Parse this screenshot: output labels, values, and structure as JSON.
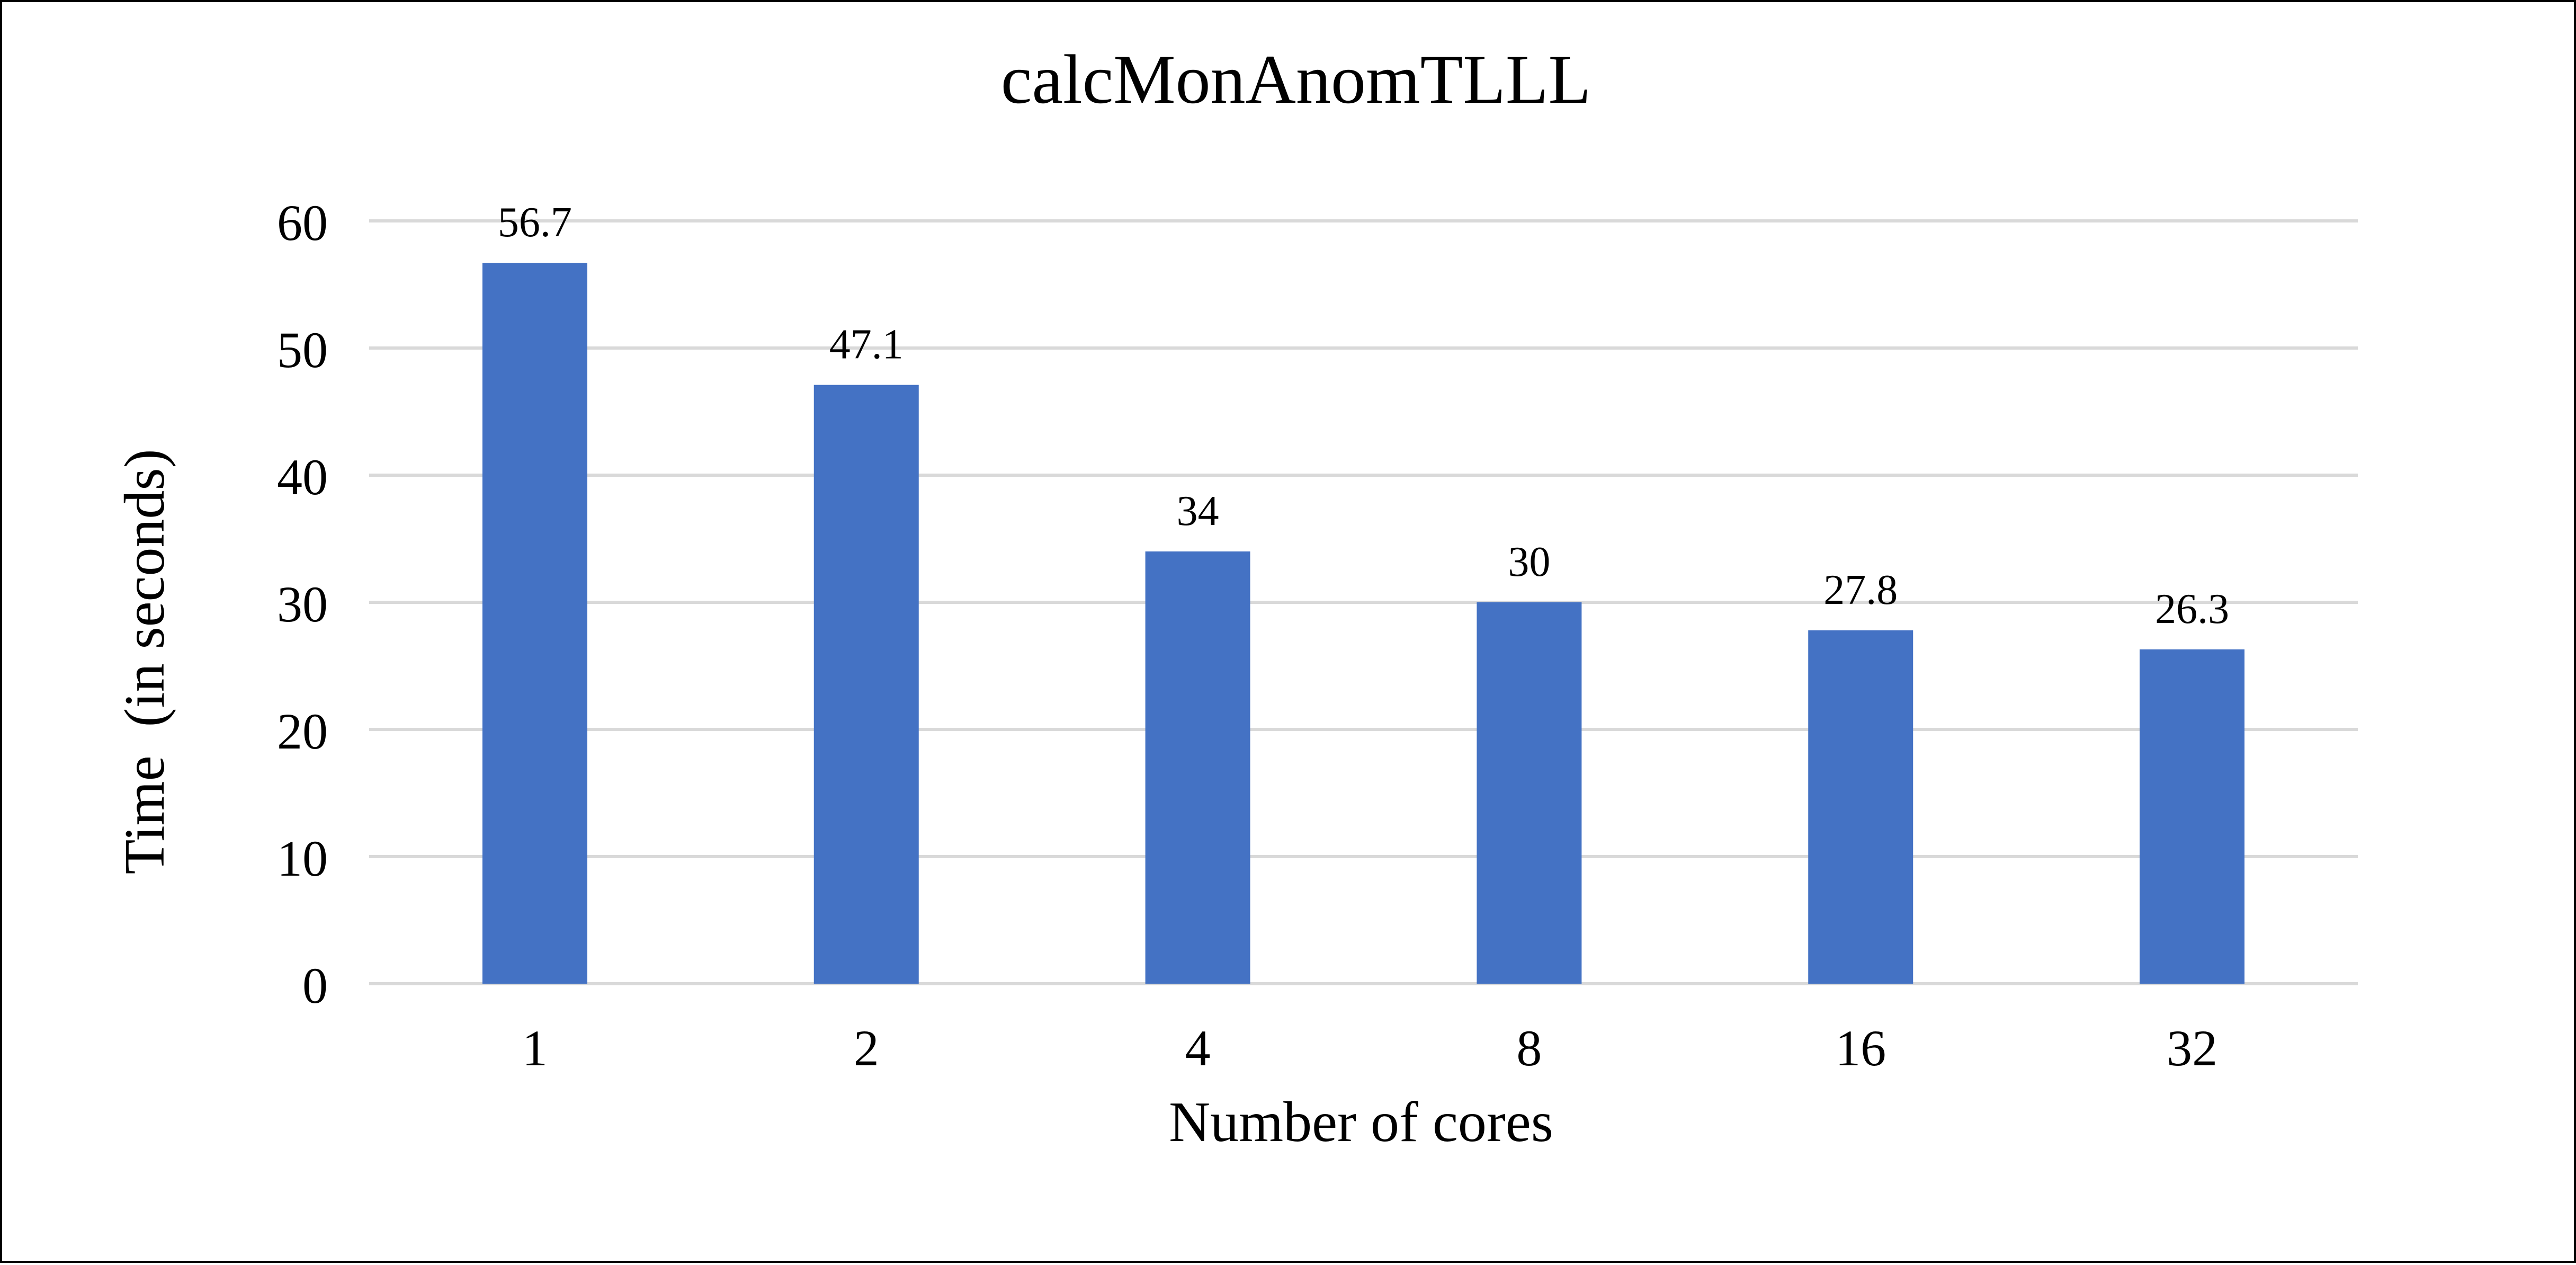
{
  "chart_data": {
    "type": "bar",
    "title": "calcMonAnomTLLL",
    "xlabel": "Number of cores",
    "ylabel": "Time  (in seconds)",
    "categories": [
      "1",
      "2",
      "4",
      "8",
      "16",
      "32"
    ],
    "series": [
      {
        "values": [
          56.7,
          47.1,
          34,
          30,
          27.8,
          26.3
        ],
        "data_labels": [
          "56.7",
          "47.1",
          "34",
          "30",
          "27.8",
          "26.3"
        ],
        "color": "#4472C4"
      }
    ],
    "ylim": [
      0,
      60
    ],
    "yticks": [
      0,
      10,
      20,
      30,
      40,
      50,
      60
    ],
    "ytick_labels": [
      "0",
      "10",
      "20",
      "30",
      "40",
      "50",
      "60"
    ],
    "grid": true,
    "legend": "none",
    "colors": {
      "gridline": "#D9D9D9",
      "text": "#000000",
      "border": "#000000",
      "background": "#FFFFFF"
    }
  }
}
